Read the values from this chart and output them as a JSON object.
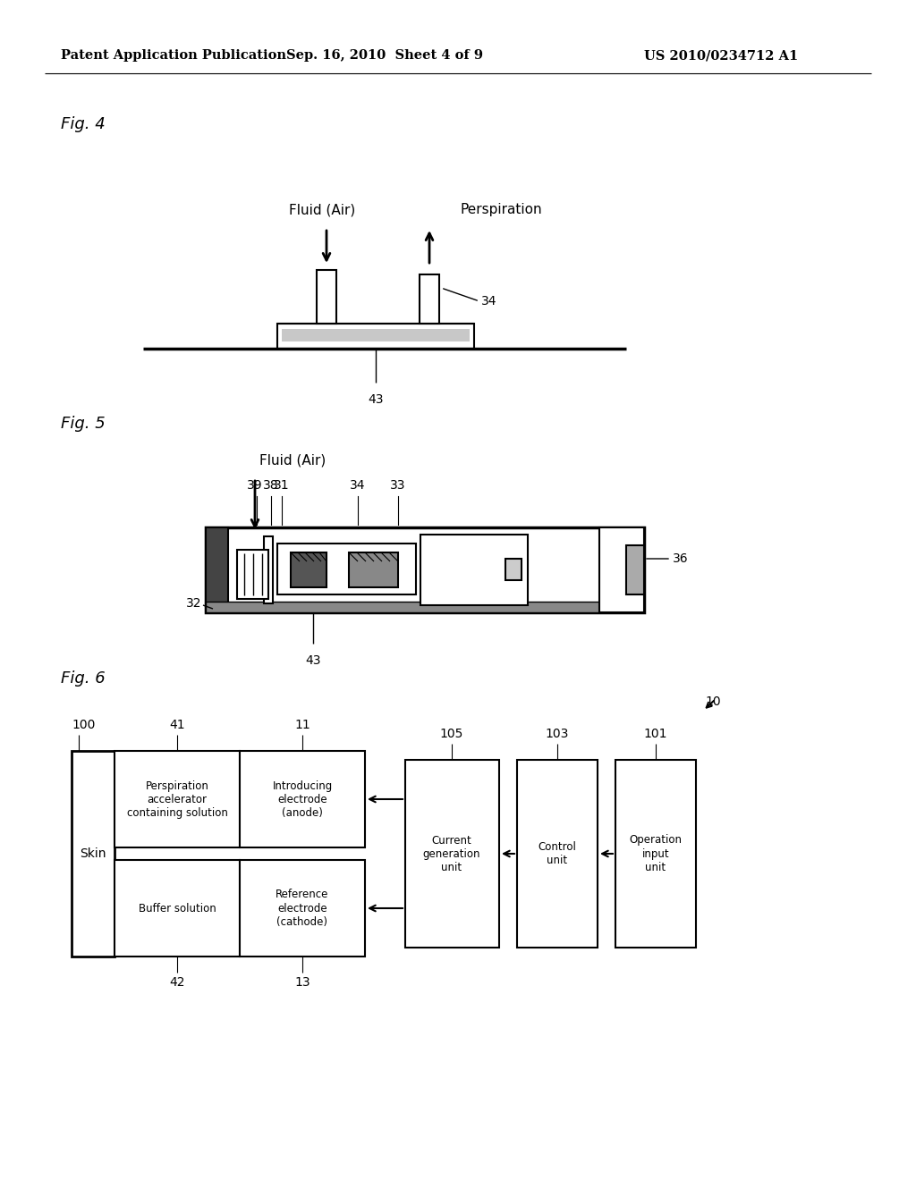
{
  "background_color": "#ffffff",
  "header_left": "Patent Application Publication",
  "header_center": "Sep. 16, 2010  Sheet 4 of 9",
  "header_right": "US 2010/0234712 A1",
  "fig4_label": "Fig. 4",
  "fig5_label": "Fig. 5",
  "fig6_label": "Fig. 6",
  "line_color": "#000000",
  "text_color": "#000000",
  "font_size_header": 10.5,
  "font_size_fig_label": 13,
  "font_size_label": 10,
  "font_size_ref": 10
}
